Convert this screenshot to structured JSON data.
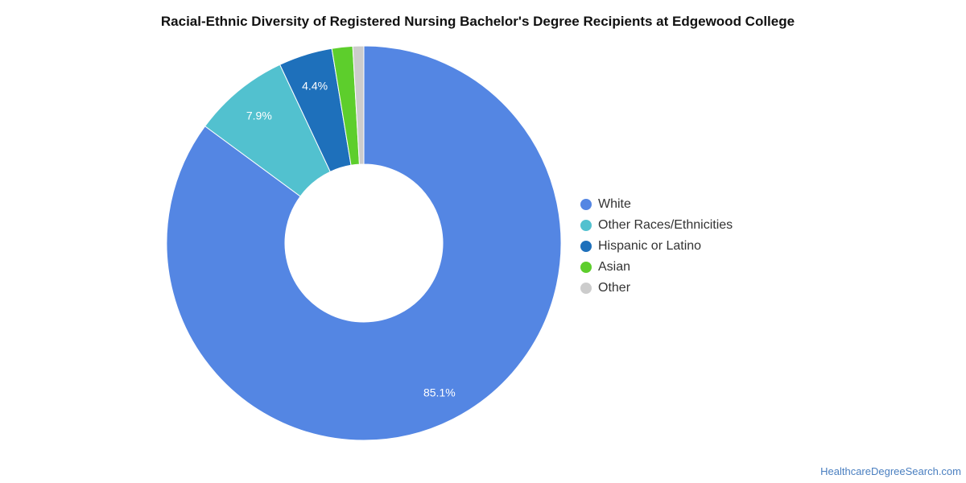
{
  "chart_data": {
    "type": "pie",
    "title": "Racial-Ethnic Diversity of Registered Nursing Bachelor's Degree Recipients at Edgewood College",
    "categories": [
      "White",
      "Other Races/Ethnicities",
      "Hispanic or Latino",
      "Asian",
      "Other"
    ],
    "values": [
      85.1,
      7.9,
      4.4,
      1.7,
      0.9
    ],
    "data_labels": [
      "85.1%",
      "7.9%",
      "4.4%",
      "",
      ""
    ],
    "colors": [
      "#5486e3",
      "#52c1cf",
      "#1e70bb",
      "#5dce2c",
      "#cccccc"
    ],
    "donut": true,
    "legend_position": "right"
  },
  "source": "HealthcareDegreeSearch.com"
}
